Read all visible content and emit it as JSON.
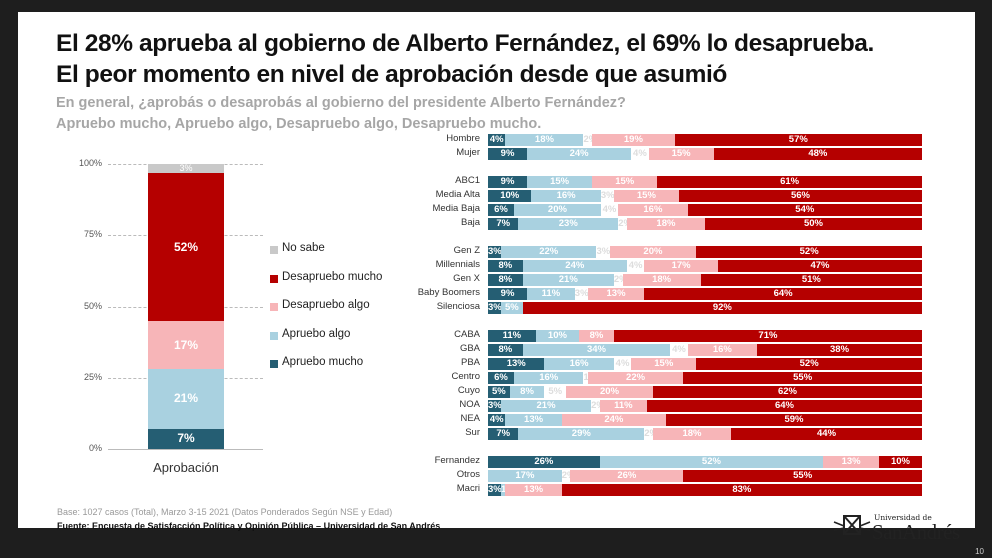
{
  "title_lines": [
    "El 28% aprueba al gobierno de Alberto Fernández, el 69% lo desaprueba.",
    "El peor momento en nivel de aprobación desde que asumió"
  ],
  "subtitle_lines": [
    "En general, ¿aprobás o desaprobás al gobierno del presidente Alberto Fernández?",
    "Apruebo mucho, Apruebo algo, Desapruebo algo, Desapruebo mucho."
  ],
  "colors": {
    "apruebo_mucho": "#255e73",
    "apruebo_algo": "#a9d1e0",
    "no_sabe": "#ffffff",
    "no_sabe_legend": "#c9c9c9",
    "desapruebo_algo": "#f7b5b8",
    "desapruebo_mucho": "#b50000"
  },
  "chart_data": [
    {
      "type": "bar",
      "stacked": true,
      "categories": [
        "Aprobación"
      ],
      "yticks": [
        "0%",
        "25%",
        "50%",
        "75%",
        "100%"
      ],
      "ylim": [
        0,
        100
      ],
      "grid": true,
      "legend_placement": "right",
      "series": [
        {
          "name": "Apruebo mucho",
          "key": "apruebo_mucho",
          "values": [
            7
          ]
        },
        {
          "name": "Apruebo algo",
          "key": "apruebo_algo",
          "values": [
            21
          ]
        },
        {
          "name": "Desapruebo algo",
          "key": "desapruebo_algo",
          "values": [
            17
          ]
        },
        {
          "name": "Desapruebo mucho",
          "key": "desapruebo_mucho",
          "values": [
            52
          ]
        },
        {
          "name": "No sabe",
          "key": "no_sabe_legend",
          "values": [
            3
          ]
        }
      ]
    },
    {
      "type": "bar",
      "orientation": "horizontal",
      "stacked": true,
      "segment_order": [
        "apruebo_mucho",
        "apruebo_algo",
        "no_sabe",
        "desapruebo_algo",
        "desapruebo_mucho"
      ],
      "groups": [
        [
          {
            "label": "Hombre",
            "values": [
              4,
              18,
              2,
              19,
              57
            ]
          },
          {
            "label": "Mujer",
            "values": [
              9,
              24,
              4,
              15,
              48
            ]
          }
        ],
        [
          {
            "label": "ABC1",
            "values": [
              9,
              15,
              0,
              15,
              61
            ]
          },
          {
            "label": "Media Alta",
            "values": [
              10,
              16,
              3,
              15,
              56
            ]
          },
          {
            "label": "Media Baja",
            "values": [
              6,
              20,
              4,
              16,
              54
            ]
          },
          {
            "label": "Baja",
            "values": [
              7,
              23,
              2,
              18,
              50
            ]
          }
        ],
        [
          {
            "label": "Gen Z",
            "values": [
              3,
              22,
              3,
              20,
              52
            ]
          },
          {
            "label": "Millennials",
            "values": [
              8,
              24,
              4,
              17,
              47
            ]
          },
          {
            "label": "Gen X",
            "values": [
              8,
              21,
              2,
              18,
              51
            ]
          },
          {
            "label": "Baby Boomers",
            "values": [
              9,
              11,
              3,
              13,
              64
            ]
          },
          {
            "label": "Silenciosa",
            "values": [
              3,
              5,
              0,
              0,
              92
            ]
          }
        ],
        [
          {
            "label": "CABA",
            "values": [
              11,
              10,
              0,
              8,
              71
            ]
          },
          {
            "label": "GBA",
            "values": [
              8,
              34,
              4,
              16,
              38
            ]
          },
          {
            "label": "PBA",
            "values": [
              13,
              16,
              4,
              15,
              52
            ]
          },
          {
            "label": "Centro",
            "values": [
              6,
              16,
              1,
              22,
              55
            ]
          },
          {
            "label": "Cuyo",
            "values": [
              5,
              8,
              5,
              20,
              62
            ]
          },
          {
            "label": "NOA",
            "values": [
              3,
              21,
              2,
              11,
              64
            ]
          },
          {
            "label": "NEA",
            "values": [
              4,
              13,
              0,
              24,
              59
            ]
          },
          {
            "label": "Sur",
            "values": [
              7,
              29,
              2,
              18,
              44
            ]
          }
        ],
        [
          {
            "label": "Fernandez",
            "values": [
              26,
              52,
              0,
              13,
              10
            ]
          },
          {
            "label": "Otros",
            "values": [
              0,
              17,
              2,
              26,
              55
            ]
          },
          {
            "label": "Macri",
            "values": [
              3,
              1,
              0,
              13,
              83
            ]
          }
        ]
      ]
    }
  ],
  "footer": {
    "base": "Base: 1027 casos (Total), Marzo 3-15 2021 (Datos Ponderados Según NSE y Edad)",
    "source": "Fuente: Encuesta de Satisfacción Política y Opinión Pública – Universidad de San Andrés",
    "logo_small": "Universidad de",
    "logo_big": "SanAndrés",
    "page": "10"
  }
}
